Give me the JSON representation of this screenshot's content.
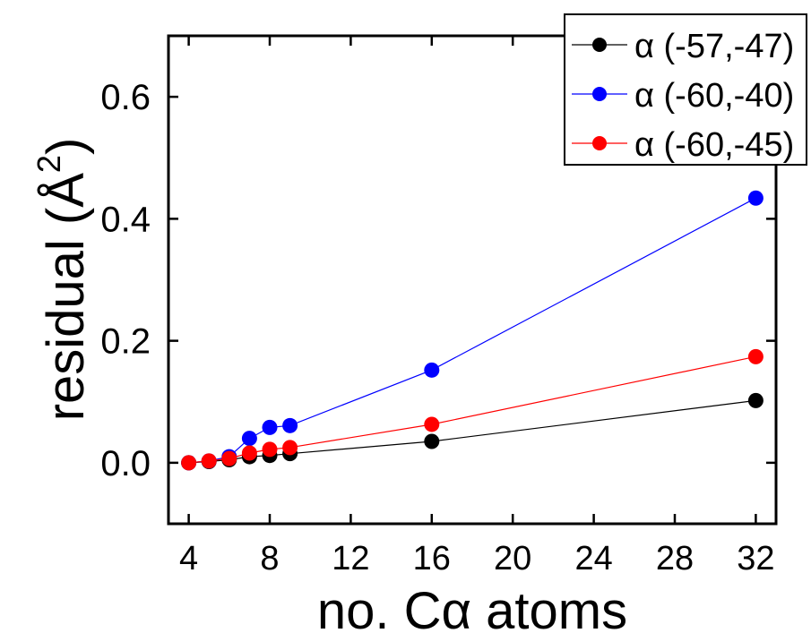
{
  "chart_data": {
    "type": "line",
    "xlabel": "no. Cα atoms",
    "ylabel": "residual (Å²)",
    "ylabel_main": "residual (Å",
    "ylabel_sup": "2",
    "ylabel_close": ")",
    "xlim": [
      3,
      33
    ],
    "ylim": [
      -0.1,
      0.7
    ],
    "xticks": [
      4,
      8,
      12,
      16,
      20,
      24,
      28,
      32
    ],
    "yticks": [
      0.0,
      0.2,
      0.4,
      0.6
    ],
    "xtick_labels": [
      "4",
      "8",
      "12",
      "16",
      "20",
      "24",
      "28",
      "32"
    ],
    "ytick_labels": [
      "0.0",
      "0.2",
      "0.4",
      "0.6"
    ],
    "legend_position": "top-right",
    "series": [
      {
        "name": "α (-57,-47)",
        "color": "#000000",
        "x": [
          4,
          5,
          6,
          7,
          8,
          9,
          16,
          32
        ],
        "y": [
          0.0,
          0.002,
          0.005,
          0.01,
          0.012,
          0.015,
          0.035,
          0.102
        ]
      },
      {
        "name": "α (-60,-40)",
        "color": "#0000ff",
        "x": [
          4,
          5,
          6,
          7,
          8,
          9,
          16,
          32
        ],
        "y": [
          0.0,
          0.003,
          0.01,
          0.04,
          0.058,
          0.061,
          0.152,
          0.434
        ]
      },
      {
        "name": "α (-60,-45)",
        "color": "#ff0000",
        "x": [
          4,
          5,
          6,
          7,
          8,
          9,
          16,
          32
        ],
        "y": [
          0.0,
          0.003,
          0.007,
          0.016,
          0.022,
          0.025,
          0.063,
          0.174
        ]
      }
    ]
  }
}
